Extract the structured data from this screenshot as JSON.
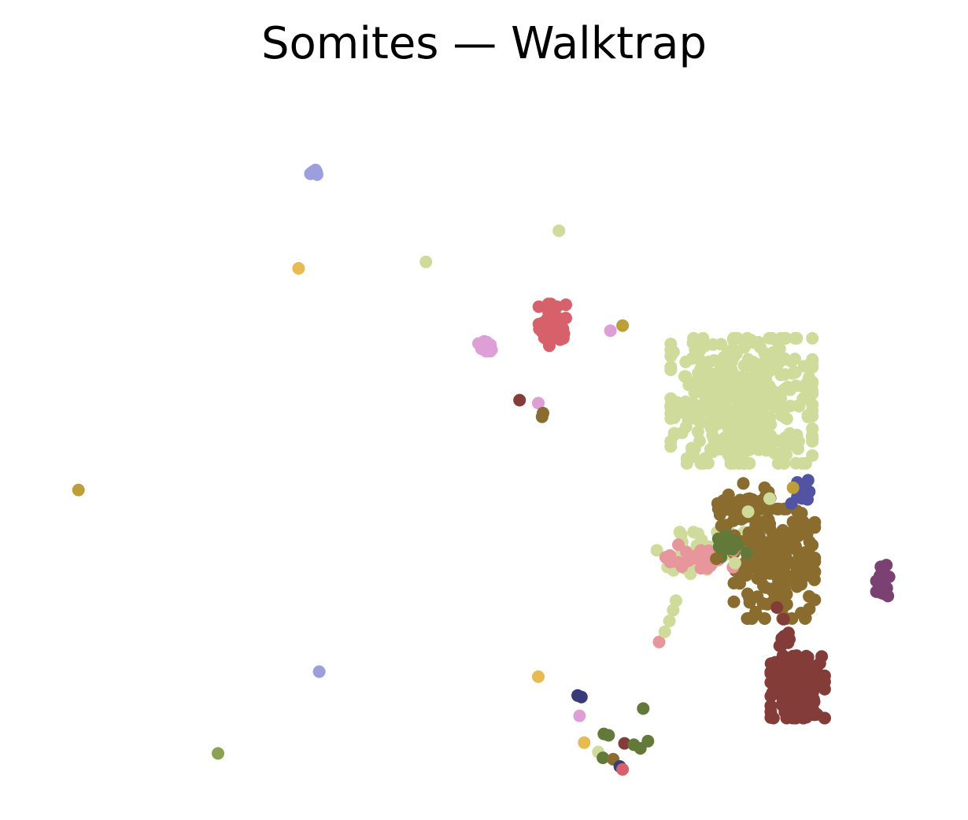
{
  "chart_data": {
    "type": "scatter",
    "title": "Somites — Walktrap",
    "xlabel": "",
    "ylabel": "",
    "axes_visible": false,
    "grid": false,
    "legend": "none",
    "xlim": [
      0,
      100
    ],
    "ylim": [
      0,
      100
    ],
    "palette": {
      "lightgreen": "#cfdb9b",
      "brown": "#8a6c2f",
      "darkred": "#843c39",
      "red": "#d6616b",
      "pink": "#e7969c",
      "orchid": "#de9ed6",
      "lavender": "#9c9ede",
      "indigo": "#5254a3",
      "navy": "#393b79",
      "plum": "#7b4173",
      "olive": "#637939",
      "sage": "#8ca252",
      "mustard": "#bd9e39",
      "gold": "#e7ba52"
    },
    "clusters": [
      {
        "color": "lightgreen",
        "kind": "blob",
        "center": [
          77.5,
          55.5
        ],
        "spread": [
          4.2,
          4.8
        ],
        "count": 420
      },
      {
        "color": "lightgreen",
        "kind": "blob",
        "center": [
          73.5,
          34.5
        ],
        "spread": [
          2.8,
          1.6
        ],
        "count": 70
      },
      {
        "color": "brown",
        "kind": "blob",
        "center": [
          81.0,
          33.0
        ],
        "spread": [
          2.4,
          4.2
        ],
        "count": 200
      },
      {
        "color": "brown",
        "kind": "blob",
        "center": [
          77.5,
          40.5
        ],
        "spread": [
          1.8,
          2.0
        ],
        "count": 40
      },
      {
        "color": "darkred",
        "kind": "blob",
        "center": [
          83.5,
          16.0
        ],
        "spread": [
          1.6,
          2.4
        ],
        "count": 160
      },
      {
        "color": "darkred",
        "kind": "blob",
        "center": [
          82.0,
          23.0
        ],
        "spread": [
          0.4,
          2.2
        ],
        "count": 14
      },
      {
        "color": "pink",
        "kind": "blob",
        "center": [
          73.0,
          34.0
        ],
        "spread": [
          2.0,
          0.9
        ],
        "count": 28
      },
      {
        "color": "olive",
        "kind": "blob",
        "center": [
          76.5,
          35.5
        ],
        "spread": [
          0.9,
          0.9
        ],
        "count": 14
      },
      {
        "color": "indigo",
        "kind": "blob",
        "center": [
          83.8,
          42.8
        ],
        "spread": [
          0.6,
          1.0
        ],
        "count": 14
      },
      {
        "color": "plum",
        "kind": "blob",
        "center": [
          92.8,
          30.3
        ],
        "spread": [
          0.5,
          1.4
        ],
        "count": 18
      },
      {
        "color": "red",
        "kind": "blob",
        "center": [
          57.3,
          66.0
        ],
        "spread": [
          0.8,
          1.6
        ],
        "count": 50
      },
      {
        "color": "orchid",
        "kind": "blob",
        "center": [
          50.0,
          63.0
        ],
        "spread": [
          0.45,
          0.45
        ],
        "count": 20
      },
      {
        "color": "lavender",
        "kind": "blob",
        "center": [
          32.0,
          87.0
        ],
        "spread": [
          0.35,
          0.3
        ],
        "count": 8
      }
    ],
    "points": [
      {
        "x": 58.0,
        "y": 79.0,
        "color": "lightgreen"
      },
      {
        "x": 43.8,
        "y": 74.7,
        "color": "lightgreen"
      },
      {
        "x": 30.2,
        "y": 73.8,
        "color": "gold"
      },
      {
        "x": 64.8,
        "y": 65.9,
        "color": "mustard"
      },
      {
        "x": 63.5,
        "y": 65.2,
        "color": "orchid"
      },
      {
        "x": 6.7,
        "y": 43.2,
        "color": "mustard"
      },
      {
        "x": 53.8,
        "y": 55.6,
        "color": "darkred"
      },
      {
        "x": 55.8,
        "y": 55.2,
        "color": "orchid"
      },
      {
        "x": 56.3,
        "y": 53.8,
        "color": "brown"
      },
      {
        "x": 56.2,
        "y": 53.3,
        "color": "brown"
      },
      {
        "x": 32.4,
        "y": 18.1,
        "color": "lavender"
      },
      {
        "x": 55.8,
        "y": 17.4,
        "color": "gold"
      },
      {
        "x": 21.6,
        "y": 6.8,
        "color": "sage"
      },
      {
        "x": 60.0,
        "y": 14.8,
        "color": "navy"
      },
      {
        "x": 60.4,
        "y": 14.6,
        "color": "navy"
      },
      {
        "x": 60.2,
        "y": 12.0,
        "color": "orchid"
      },
      {
        "x": 67.0,
        "y": 13.0,
        "color": "olive"
      },
      {
        "x": 62.8,
        "y": 9.5,
        "color": "olive"
      },
      {
        "x": 63.3,
        "y": 9.3,
        "color": "olive"
      },
      {
        "x": 60.7,
        "y": 8.3,
        "color": "gold"
      },
      {
        "x": 62.2,
        "y": 7.0,
        "color": "lightgreen"
      },
      {
        "x": 62.7,
        "y": 6.2,
        "color": "olive"
      },
      {
        "x": 63.8,
        "y": 6.0,
        "color": "brown"
      },
      {
        "x": 65.0,
        "y": 8.2,
        "color": "darkred"
      },
      {
        "x": 66.0,
        "y": 8.0,
        "color": "olive"
      },
      {
        "x": 66.7,
        "y": 7.5,
        "color": "olive"
      },
      {
        "x": 67.5,
        "y": 8.5,
        "color": "olive"
      },
      {
        "x": 64.5,
        "y": 5.0,
        "color": "navy"
      },
      {
        "x": 64.8,
        "y": 4.6,
        "color": "red"
      },
      {
        "x": 68.7,
        "y": 22.2,
        "color": "pink"
      },
      {
        "x": 69.3,
        "y": 23.6,
        "color": "lightgreen"
      },
      {
        "x": 69.8,
        "y": 25.1,
        "color": "lightgreen"
      },
      {
        "x": 70.2,
        "y": 26.6,
        "color": "lightgreen"
      },
      {
        "x": 70.5,
        "y": 27.9,
        "color": "lightgreen"
      },
      {
        "x": 74.8,
        "y": 33.7,
        "color": "brown"
      },
      {
        "x": 76.8,
        "y": 33.1,
        "color": "lightgreen"
      },
      {
        "x": 78.2,
        "y": 40.2,
        "color": "lightgreen"
      },
      {
        "x": 80.5,
        "y": 42.0,
        "color": "lightgreen"
      },
      {
        "x": 79.8,
        "y": 27.5,
        "color": "brown"
      },
      {
        "x": 83.0,
        "y": 43.5,
        "color": "mustard"
      }
    ]
  }
}
